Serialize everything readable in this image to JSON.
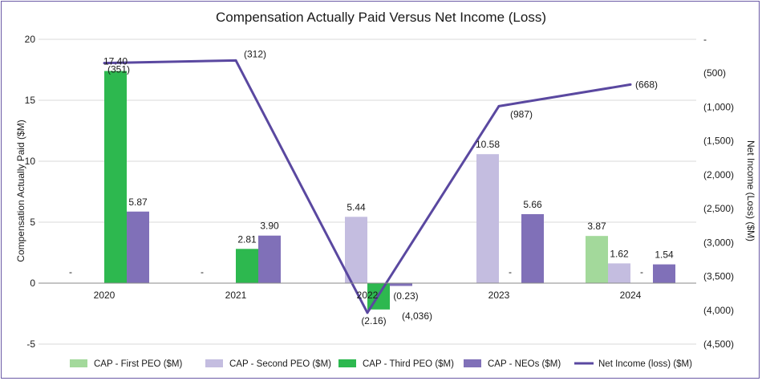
{
  "chart_data": {
    "type": "bar+line",
    "title": "Compensation Actually Paid Versus Net Income (Loss)",
    "categories": [
      "2020",
      "2021",
      "2022",
      "2023",
      "2024"
    ],
    "ylabel_left": "Compensation Actually Paid ($M)",
    "ylabel_right": "Net Income (Loss) ($M)",
    "ylim_left": [
      -5,
      20
    ],
    "yticks_left": [
      "20",
      "15",
      "10",
      "5",
      "0",
      "-5"
    ],
    "yticks_left_values": [
      20,
      15,
      10,
      5,
      0,
      -5
    ],
    "ylim_right": [
      -4500,
      0
    ],
    "yticks_right": [
      "-",
      "(500)",
      "(1,000)",
      "(1,500)",
      "(2,000)",
      "(2,500)",
      "(3,000)",
      "(3,500)",
      "(4,000)",
      "(4,500)"
    ],
    "yticks_right_values": [
      0,
      -500,
      -1000,
      -1500,
      -2000,
      -2500,
      -3000,
      -3500,
      -4000,
      -4500
    ],
    "grid": true,
    "legend_position": "bottom",
    "colors": {
      "first_peo": "#a3d99b",
      "second_peo": "#c4bde0",
      "third_peo": "#2db84f",
      "neos": "#8070b8",
      "net_income": "#5a48a0",
      "grid": "#d9d9d9",
      "axis": "#8a8a8a",
      "frame": "#6b5aa6"
    },
    "series": [
      {
        "name": "CAP - First PEO ($M)",
        "key": "first_peo",
        "values": [
          0,
          0,
          0,
          0,
          3.87
        ],
        "labels": [
          "-",
          "-",
          "",
          "",
          "3.87"
        ]
      },
      {
        "name": "CAP - Second PEO ($M)",
        "key": "second_peo",
        "values": [
          0,
          0,
          5.44,
          10.58,
          1.62
        ],
        "labels": [
          "",
          "",
          "5.44",
          "10.58",
          "1.62"
        ]
      },
      {
        "name": "CAP - Third PEO ($M)",
        "key": "third_peo",
        "values": [
          17.4,
          2.81,
          -2.16,
          0,
          0
        ],
        "labels": [
          "17.40",
          "2.81",
          "(2.16)",
          "-",
          "-"
        ]
      },
      {
        "name": "CAP - NEOs ($M)",
        "key": "neos",
        "values": [
          5.87,
          3.9,
          -0.23,
          5.66,
          1.54
        ],
        "labels": [
          "5.87",
          "3.90",
          "(0.23)",
          "5.66",
          "1.54"
        ]
      }
    ],
    "line": {
      "name": "Net Income (loss) ($M)",
      "key": "net_income",
      "values": [
        -351,
        -312,
        -4036,
        -987,
        -668
      ],
      "labels": [
        "(351)",
        "(312)",
        "(4,036)",
        "(987)",
        "(668)"
      ]
    }
  }
}
